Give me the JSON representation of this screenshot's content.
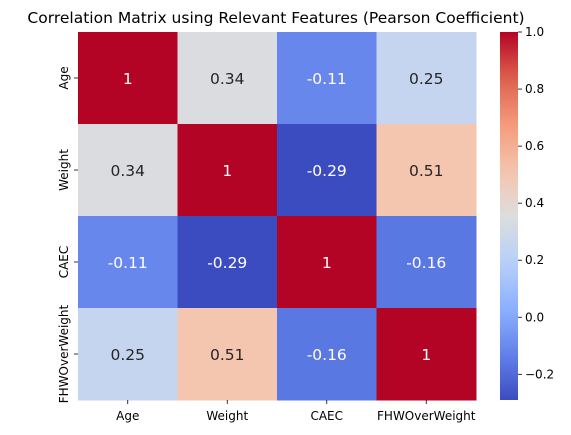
{
  "chart_data": {
    "type": "heatmap",
    "title": "Correlation Matrix using Relevant Features (Pearson Coefficient)",
    "xlabel": "",
    "ylabel": "",
    "x_categories": [
      "Age",
      "Weight",
      "CAEC",
      "FHWOverWeight"
    ],
    "y_categories": [
      "Age",
      "Weight",
      "CAEC",
      "FHWOverWeight"
    ],
    "values": [
      [
        1,
        0.34,
        -0.11,
        0.25
      ],
      [
        0.34,
        1,
        -0.29,
        0.51
      ],
      [
        -0.11,
        -0.29,
        1,
        -0.16
      ],
      [
        0.25,
        0.51,
        -0.16,
        1
      ]
    ],
    "annotations": [
      [
        "1",
        "0.34",
        "-0.11",
        "0.25"
      ],
      [
        "0.34",
        "1",
        "-0.29",
        "0.51"
      ],
      [
        "-0.11",
        "-0.29",
        "1",
        "-0.16"
      ],
      [
        "0.25",
        "0.51",
        "-0.16",
        "1"
      ]
    ],
    "colormap": "coolwarm",
    "vmin": -0.29,
    "vmax": 1.0,
    "colorbar_ticks": [
      -0.2,
      0.0,
      0.2,
      0.4,
      0.6,
      0.8,
      1.0
    ],
    "colorbar_tick_labels": [
      "−0.2",
      "0.0",
      "0.2",
      "0.4",
      "0.6",
      "0.8",
      "1.0"
    ],
    "colorbar_position": "right"
  }
}
